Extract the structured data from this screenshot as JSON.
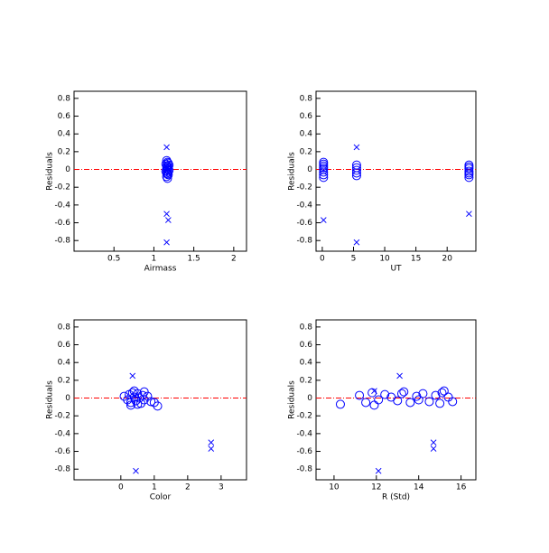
{
  "chart_data": [
    {
      "type": "scatter",
      "xlabel": "Airmass",
      "ylabel": "Residuals",
      "xlim": [
        0,
        2.16
      ],
      "xticks": [
        0.5,
        1.0,
        1.5,
        2.0
      ],
      "ylim": [
        -0.92,
        0.88
      ],
      "yticks": [
        -0.8,
        -0.6,
        -0.4,
        -0.2,
        0.0,
        0.2,
        0.4,
        0.6,
        0.8
      ],
      "reference_line": 0,
      "series": [
        {
          "marker": "circle",
          "color": "#0000ff",
          "x": [
            1.16,
            1.17,
            1.18,
            1.15,
            1.19,
            1.16,
            1.17,
            1.18,
            1.16,
            1.17,
            1.19,
            1.15,
            1.18,
            1.16,
            1.17,
            1.18,
            1.16,
            1.17
          ],
          "y": [
            0.1,
            0.08,
            0.07,
            0.06,
            0.05,
            0.04,
            0.03,
            0.02,
            0.01,
            0,
            -0.01,
            -0.02,
            -0.03,
            -0.04,
            -0.05,
            -0.06,
            -0.08,
            -0.1
          ]
        },
        {
          "marker": "x",
          "color": "#0000ff",
          "x": [
            1.16,
            1.16,
            1.18,
            1.16
          ],
          "y": [
            0.25,
            -0.5,
            -0.57,
            -0.82
          ]
        }
      ]
    },
    {
      "type": "scatter",
      "xlabel": "UT",
      "ylabel": "Residuals",
      "xlim": [
        -1,
        24.6
      ],
      "xticks": [
        0,
        5,
        10,
        15,
        20
      ],
      "ylim": [
        -0.92,
        0.88
      ],
      "yticks": [
        -0.8,
        -0.6,
        -0.4,
        -0.2,
        0.0,
        0.2,
        0.4,
        0.6,
        0.8
      ],
      "reference_line": 0,
      "series": [
        {
          "marker": "circle",
          "color": "#0000ff",
          "x": [
            0.2,
            0.2,
            0.2,
            0.2,
            0.2,
            0.2,
            0.2,
            0.2,
            5.5,
            5.5,
            5.5,
            5.5,
            5.5,
            23.5,
            23.5,
            23.5,
            23.5,
            23.5,
            23.5,
            23.5
          ],
          "y": [
            0.08,
            0.06,
            0.04,
            0.02,
            0,
            -0.03,
            -0.06,
            -0.09,
            0.05,
            0.02,
            -0.01,
            -0.04,
            -0.07,
            0.05,
            0.03,
            0.01,
            -0.02,
            -0.04,
            -0.06,
            -0.09
          ]
        },
        {
          "marker": "x",
          "color": "#0000ff",
          "x": [
            5.5,
            0.2,
            5.5,
            23.5
          ],
          "y": [
            0.25,
            -0.57,
            -0.82,
            -0.5
          ]
        }
      ]
    },
    {
      "type": "scatter",
      "xlabel": "Color",
      "ylabel": "Residuals",
      "xlim": [
        -1.4,
        3.76
      ],
      "xticks": [
        0,
        1,
        2,
        3
      ],
      "ylim": [
        -0.92,
        0.88
      ],
      "yticks": [
        -0.8,
        -0.6,
        -0.4,
        -0.2,
        0.0,
        0.2,
        0.4,
        0.6,
        0.8
      ],
      "reference_line": 0,
      "series": [
        {
          "marker": "circle",
          "color": "#0000ff",
          "x": [
            0.1,
            0.2,
            0.25,
            0.3,
            0.35,
            0.4,
            0.45,
            0.5,
            0.55,
            0.6,
            0.65,
            0.7,
            0.8,
            0.9,
            1.0,
            1.1,
            0.3,
            0.5,
            0.4,
            0.7
          ],
          "y": [
            0.02,
            -0.02,
            0.04,
            -0.05,
            0.06,
            0.01,
            -0.03,
            0.05,
            0.0,
            -0.06,
            0.03,
            0.07,
            0.02,
            -0.04,
            -0.05,
            -0.09,
            -0.08,
            -0.07,
            0.08,
            -0.02
          ]
        },
        {
          "marker": "x",
          "color": "#0000ff",
          "x": [
            0.35,
            2.7,
            2.7,
            0.45
          ],
          "y": [
            0.25,
            -0.5,
            -0.57,
            -0.82
          ]
        }
      ]
    },
    {
      "type": "scatter",
      "xlabel": "R (Std)",
      "ylabel": "Residuals",
      "xlim": [
        9.15,
        16.7
      ],
      "xticks": [
        10,
        12,
        14,
        16
      ],
      "ylim": [
        -0.92,
        0.88
      ],
      "yticks": [
        -0.8,
        -0.6,
        -0.4,
        -0.2,
        0.0,
        0.2,
        0.4,
        0.6,
        0.8
      ],
      "reference_line": 0,
      "series": [
        {
          "marker": "circle",
          "color": "#0000ff",
          "x": [
            10.3,
            11.2,
            11.5,
            11.8,
            12.1,
            12.4,
            12.7,
            13.0,
            13.3,
            13.6,
            13.9,
            14.2,
            14.5,
            14.8,
            15.0,
            15.2,
            15.4,
            15.6,
            11.9,
            13.2,
            14.0,
            15.1
          ],
          "y": [
            -0.07,
            0.03,
            -0.05,
            0.06,
            -0.02,
            0.04,
            0.01,
            -0.03,
            0.07,
            -0.05,
            0.02,
            0.05,
            -0.04,
            0.03,
            -0.06,
            0.08,
            0.01,
            -0.04,
            -0.08,
            0.05,
            -0.02,
            0.06
          ]
        },
        {
          "marker": "x",
          "color": "#0000ff",
          "x": [
            13.1,
            14.7,
            14.7,
            12.1,
            11.9
          ],
          "y": [
            0.25,
            -0.5,
            -0.57,
            -0.82,
            0.08
          ]
        }
      ]
    }
  ]
}
